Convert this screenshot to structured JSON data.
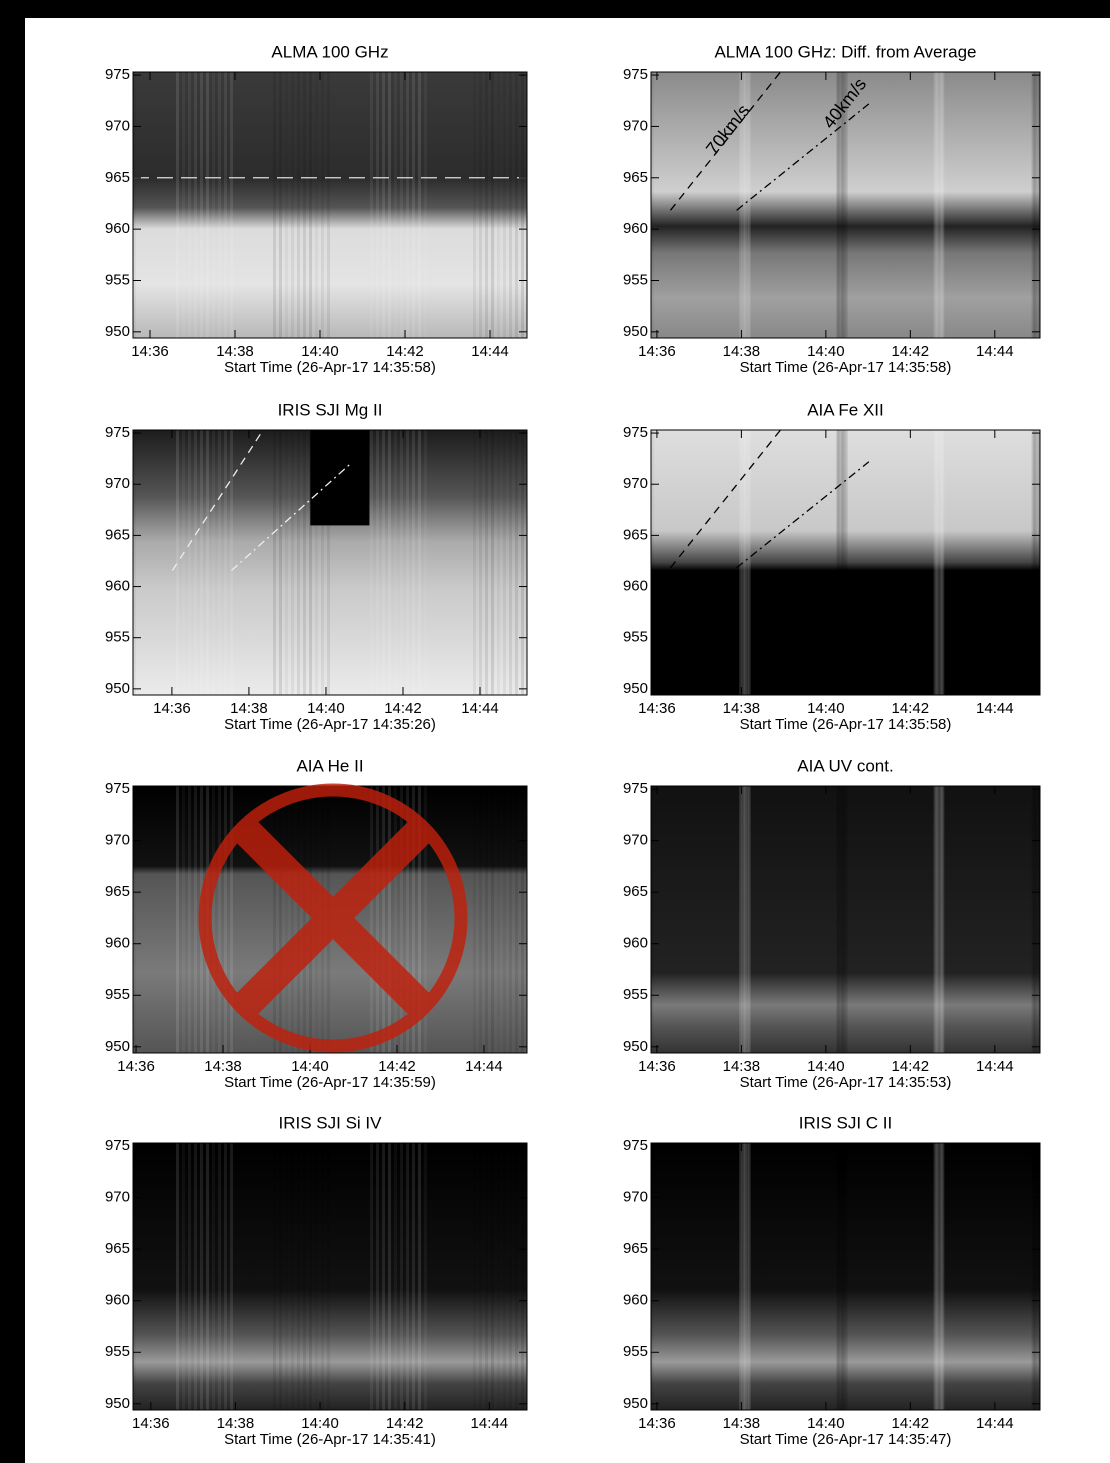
{
  "panels": [
    {
      "title": "ALMA 100 GHz",
      "xlabel": "Start Time (26-Apr-17 14:35:58)",
      "xlim": [
        35.6,
        44.87
      ],
      "ylim": [
        949.4,
        975.3
      ],
      "xticks": [
        {
          "value": 36,
          "label": "14:36"
        },
        {
          "value": 38,
          "label": "14:38"
        },
        {
          "value": 40,
          "label": "14:40"
        },
        {
          "value": 42,
          "label": "14:42"
        },
        {
          "value": 44,
          "label": "14:44"
        }
      ],
      "yticks": [
        950,
        955,
        960,
        965,
        970,
        975
      ],
      "hline": 965
    },
    {
      "title": "ALMA 100 GHz: Diff. from Average",
      "xlabel": "Start Time (26-Apr-17 14:35:58)",
      "xlim": [
        35.86,
        45.07
      ],
      "ylim": [
        949.4,
        975.3
      ],
      "xticks": [
        {
          "value": 36,
          "label": "14:36"
        },
        {
          "value": 38,
          "label": "14:38"
        },
        {
          "value": 40,
          "label": "14:40"
        },
        {
          "value": 42,
          "label": "14:42"
        },
        {
          "value": 44,
          "label": "14:44"
        }
      ],
      "yticks": [
        950,
        955,
        960,
        965,
        970,
        975
      ],
      "annotations": [
        "70km/s",
        "40km/s"
      ]
    },
    {
      "title": "IRIS SJI Mg II",
      "xlabel": "Start Time (26-Apr-17 14:35:26)",
      "xlim": [
        34.99,
        45.22
      ],
      "ylim": [
        949.4,
        975.3
      ],
      "xticks": [
        {
          "value": 36,
          "label": "14:36"
        },
        {
          "value": 38,
          "label": "14:38"
        },
        {
          "value": 40,
          "label": "14:40"
        },
        {
          "value": 42,
          "label": "14:42"
        },
        {
          "value": 44,
          "label": "14:44"
        }
      ],
      "yticks": [
        950,
        955,
        960,
        965,
        970,
        975
      ]
    },
    {
      "title": "AIA Fe XII",
      "xlabel": "Start Time (26-Apr-17 14:35:58)",
      "xlim": [
        35.86,
        45.07
      ],
      "ylim": [
        949.4,
        975.3
      ],
      "xticks": [
        {
          "value": 36,
          "label": "14:36"
        },
        {
          "value": 38,
          "label": "14:38"
        },
        {
          "value": 40,
          "label": "14:40"
        },
        {
          "value": 42,
          "label": "14:42"
        },
        {
          "value": 44,
          "label": "14:44"
        }
      ],
      "yticks": [
        950,
        955,
        960,
        965,
        970,
        975
      ]
    },
    {
      "title": "AIA He II",
      "xlabel": "Start Time (26-Apr-17 14:35:59)",
      "xlim": [
        35.93,
        44.99
      ],
      "ylim": [
        949.4,
        975.3
      ],
      "xticks": [
        {
          "value": 36,
          "label": "14:36"
        },
        {
          "value": 38,
          "label": "14:38"
        },
        {
          "value": 40,
          "label": "14:40"
        },
        {
          "value": 42,
          "label": "14:42"
        },
        {
          "value": 44,
          "label": "14:44"
        }
      ],
      "yticks": [
        950,
        955,
        960,
        965,
        970,
        975
      ]
    },
    {
      "title": "AIA UV cont.",
      "xlabel": "Start Time (26-Apr-17 14:35:53)",
      "xlim": [
        35.86,
        45.07
      ],
      "ylim": [
        949.4,
        975.3
      ],
      "xticks": [
        {
          "value": 36,
          "label": "14:36"
        },
        {
          "value": 38,
          "label": "14:38"
        },
        {
          "value": 40,
          "label": "14:40"
        },
        {
          "value": 42,
          "label": "14:42"
        },
        {
          "value": 44,
          "label": "14:44"
        }
      ],
      "yticks": [
        950,
        955,
        960,
        965,
        970,
        975
      ]
    },
    {
      "title": "IRIS SJI Si IV",
      "xlabel": "Start Time (26-Apr-17 14:35:41)",
      "xlim": [
        35.58,
        44.89
      ],
      "ylim": [
        949.4,
        975.3
      ],
      "xticks": [
        {
          "value": 36,
          "label": "14:36"
        },
        {
          "value": 38,
          "label": "14:38"
        },
        {
          "value": 40,
          "label": "14:40"
        },
        {
          "value": 42,
          "label": "14:42"
        },
        {
          "value": 44,
          "label": "14:44"
        }
      ],
      "yticks": [
        950,
        955,
        960,
        965,
        970,
        975
      ]
    },
    {
      "title": "IRIS SJI C II",
      "xlabel": "Start Time (26-Apr-17 14:35:47)",
      "xlim": [
        35.86,
        45.07
      ],
      "ylim": [
        949.4,
        975.3
      ],
      "xticks": [
        {
          "value": 36,
          "label": "14:36"
        },
        {
          "value": 38,
          "label": "14:38"
        },
        {
          "value": 40,
          "label": "14:40"
        },
        {
          "value": 42,
          "label": "14:42"
        },
        {
          "value": 44,
          "label": "14:44"
        }
      ],
      "yticks": [
        950,
        955,
        960,
        965,
        970,
        975
      ]
    }
  ]
}
